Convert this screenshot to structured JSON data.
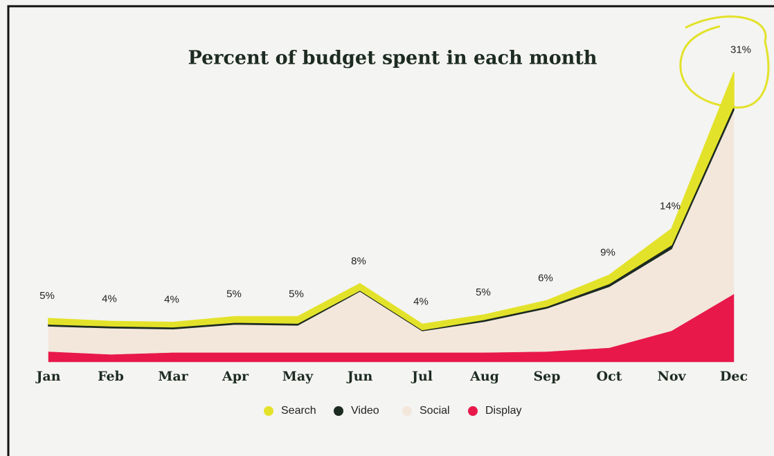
{
  "chart_data": {
    "type": "stacked_area",
    "title": "Percent of budget spent in each month",
    "categories": [
      "Jan",
      "Feb",
      "Mar",
      "Apr",
      "May",
      "Jun",
      "Jul",
      "Aug",
      "Sep",
      "Oct",
      "Nov",
      "Dec"
    ],
    "series": [
      {
        "name": "Display",
        "color": "#e8194a",
        "values": [
          1.1,
          0.8,
          1.0,
          1.0,
          1.0,
          1.0,
          1.0,
          1.0,
          1.1,
          1.5,
          3.3,
          7.2
        ]
      },
      {
        "name": "Social",
        "color": "#f3e7dc",
        "values": [
          2.7,
          2.8,
          2.5,
          3.0,
          2.9,
          6.5,
          2.3,
          3.3,
          4.6,
          6.5,
          8.7,
          19.5
        ]
      },
      {
        "name": "Video",
        "color": "#1d2b22",
        "values": [
          0.2,
          0.2,
          0.2,
          0.2,
          0.2,
          0.1,
          0.1,
          0.2,
          0.2,
          0.3,
          0.4,
          0.5
        ]
      },
      {
        "name": "Search",
        "color": "#e3e22a",
        "values": [
          0.6,
          0.5,
          0.5,
          0.6,
          0.7,
          0.7,
          0.6,
          0.5,
          0.6,
          0.9,
          1.7,
          3.5
        ]
      }
    ],
    "legend_order": [
      "Search",
      "Video",
      "Social",
      "Display"
    ],
    "total_labels": [
      "5%",
      "4%",
      "4%",
      "5%",
      "5%",
      "8%",
      "4%",
      "5%",
      "6%",
      "9%",
      "14%",
      "31%"
    ],
    "ylim": [
      0,
      33
    ]
  }
}
